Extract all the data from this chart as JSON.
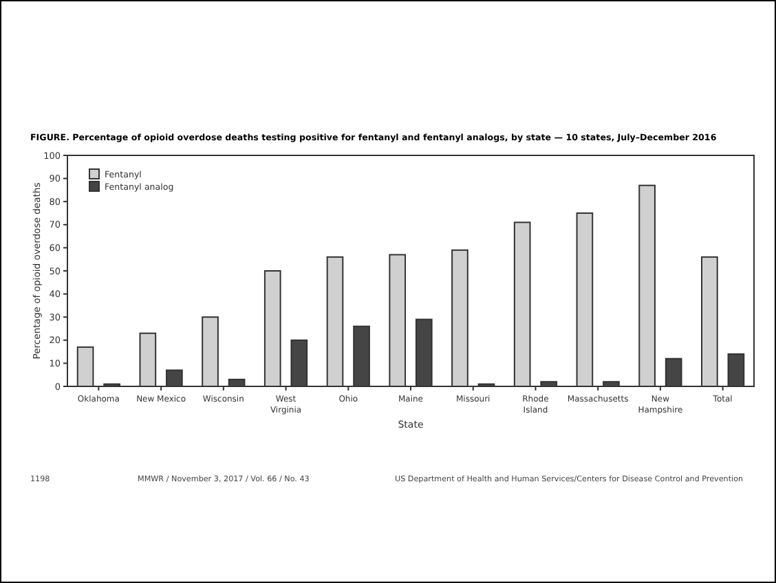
{
  "chart_data": {
    "type": "bar",
    "title": "FIGURE. Percentage of opioid overdose deaths testing positive for fentanyl and fentanyl analogs, by state — 10 states, July–December 2016",
    "xlabel": "State",
    "ylabel": "Percentage of opioid overdose deaths",
    "categories": [
      "Oklahoma",
      "New Mexico",
      "Wisconsin",
      "West Virginia",
      "Ohio",
      "Maine",
      "Missouri",
      "Rhode Island",
      "Massachusetts",
      "New Hampshire",
      "Total"
    ],
    "series": [
      {
        "name": "Fentanyl",
        "color": "#d0d0d0",
        "values": [
          17,
          23,
          30,
          50,
          56,
          57,
          59,
          71,
          75,
          87,
          56
        ]
      },
      {
        "name": "Fentanyl analog",
        "color": "#454545",
        "values": [
          1,
          7,
          3,
          20,
          26,
          29,
          1,
          2,
          2,
          12,
          14
        ]
      }
    ],
    "ylim": [
      0,
      100
    ],
    "yticks": [
      0,
      10,
      20,
      30,
      40,
      50,
      60,
      70,
      80,
      90,
      100
    ],
    "grid": false,
    "legend": "top left",
    "annotations": [
      "1198",
      "MMWR / November 3, 2017 / Vol. 66 / No. 43",
      "US Department of Health and Human Services/Centers for Disease Control and Prevention"
    ]
  }
}
